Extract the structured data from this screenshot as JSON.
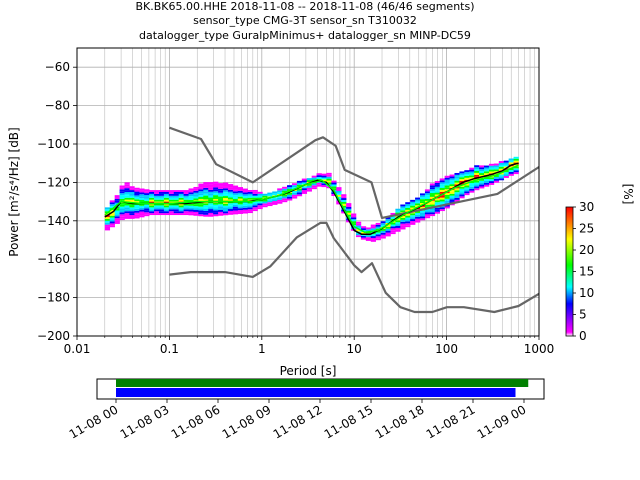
{
  "chart_data": {
    "type": "heatmap",
    "title_lines": [
      "BK.BK65.00.HHE   2018-11-08 -- 2018-11-08  (46/46 segments)",
      "sensor_type CMG-3T sensor_sn T310032",
      "datalogger_type GuralpMinimus+ datalogger_sn MINP-DC59"
    ],
    "xlabel": "Period [s]",
    "ylabel": "Power [m²/s⁴/Hz] [dB]",
    "xscale": "log",
    "xlim": [
      0.01,
      1000
    ],
    "ylim": [
      -200,
      -50
    ],
    "xticks": [
      0.01,
      0.1,
      1,
      10,
      100,
      1000
    ],
    "xtick_labels": [
      "0.01",
      "0.1",
      "1",
      "10",
      "100",
      "1000"
    ],
    "yticks": [
      -200,
      -180,
      -160,
      -140,
      -120,
      -100,
      -80,
      -60
    ],
    "ytick_labels": [
      "−200",
      "−180",
      "−160",
      "−140",
      "−120",
      "−100",
      "−80",
      "−60"
    ],
    "grid": true,
    "colorbar": {
      "label": "[%]",
      "range": [
        0,
        30
      ],
      "ticks": [
        0,
        5,
        10,
        15,
        20,
        25,
        30
      ],
      "tick_labels": [
        "0",
        "5",
        "10",
        "15",
        "20",
        "25",
        "30"
      ],
      "colormap": "pqlx",
      "colors": [
        "#ffffff",
        "#ff00ff",
        "#0000ff",
        "#00ffff",
        "#00ff00",
        "#ffff00",
        "#ff8000",
        "#ff0000"
      ]
    },
    "series": [
      {
        "role": "noise-model-high",
        "color": "#666666",
        "x": [
          0.1,
          0.22,
          0.32,
          0.8,
          3.8,
          4.6,
          6.3,
          7.9,
          15.4,
          20,
          354.8,
          1000
        ],
        "y": [
          -91.5,
          -97.4,
          -110.5,
          -120,
          -98,
          -96.5,
          -101,
          -113.5,
          -120,
          -138.5,
          -126,
          -112
        ]
      },
      {
        "role": "noise-model-low",
        "color": "#666666",
        "x": [
          0.1,
          0.17,
          0.4,
          0.8,
          1.24,
          2.4,
          4.3,
          5,
          6,
          10,
          12,
          15.6,
          21.9,
          31.6,
          45,
          70,
          101,
          154,
          328,
          600,
          1000
        ],
        "y": [
          -168,
          -166.7,
          -166.7,
          -169.2,
          -163.7,
          -148.6,
          -141.1,
          -141.1,
          -149,
          -163.2,
          -166.7,
          -162.1,
          -177.5,
          -185,
          -187.5,
          -187.5,
          -185,
          -185,
          -187.5,
          -184.4,
          -178
        ]
      },
      {
        "role": "mode",
        "color": "#000000",
        "x": [
          0.02,
          0.025,
          0.03,
          0.04,
          0.06,
          0.1,
          0.15,
          0.25,
          0.4,
          0.7,
          1,
          1.5,
          2,
          3,
          4,
          5,
          6,
          8,
          10,
          12,
          15,
          20,
          30,
          50,
          70,
          100,
          150,
          200,
          300,
          400,
          500,
          600
        ],
        "y": [
          -138,
          -135,
          -130,
          -131,
          -131,
          -131,
          -131,
          -130,
          -130,
          -130,
          -129,
          -127,
          -125,
          -121,
          -119,
          -120,
          -125,
          -136,
          -145,
          -147,
          -147,
          -144,
          -138,
          -133,
          -129,
          -125,
          -120,
          -118,
          -116,
          -114,
          -111,
          -110
        ]
      },
      {
        "role": "mean",
        "color": "#00ff00",
        "x": [
          0.02,
          0.03,
          0.05,
          0.1,
          0.2,
          0.4,
          0.8,
          1.5,
          3,
          4.5,
          6,
          8,
          10,
          13,
          18,
          25,
          40,
          70,
          120,
          200,
          350,
          600
        ],
        "y": [
          -137,
          -130,
          -131,
          -131,
          -130,
          -130,
          -130,
          -127,
          -121,
          -119,
          -124,
          -135,
          -143,
          -146,
          -145,
          -141,
          -135,
          -129,
          -123,
          -119,
          -116,
          -111
        ]
      }
    ],
    "spread": {
      "x": [
        0.02,
        0.025,
        0.03,
        0.04,
        0.06,
        0.1,
        0.15,
        0.25,
        0.4,
        0.7,
        1,
        1.5,
        2,
        3,
        4,
        5,
        6,
        8,
        10,
        12,
        15,
        20,
        30,
        50,
        70,
        100,
        150,
        200,
        300,
        400,
        500,
        600
      ],
      "upper": [
        -133,
        -128,
        -120,
        -123,
        -124,
        -124,
        -124,
        -120,
        -121,
        -124,
        -126,
        -124,
        -121,
        -118,
        -116,
        -116,
        -121,
        -130,
        -140,
        -144,
        -143,
        -140,
        -133,
        -127,
        -120,
        -117,
        -114,
        -112,
        -111,
        -109,
        -107,
        -106
      ],
      "lower": [
        -145,
        -142,
        -139,
        -139,
        -137,
        -137,
        -137,
        -138,
        -137,
        -136,
        -133,
        -131,
        -129,
        -125,
        -122,
        -123,
        -129,
        -140,
        -148,
        -150,
        -151,
        -149,
        -145,
        -140,
        -137,
        -133,
        -127,
        -124,
        -121,
        -118,
        -116,
        -115
      ]
    },
    "timeline": {
      "range": [
        "2018-11-08 00:00",
        "2018-11-09 00:00"
      ],
      "tick_labels": [
        "11-08 00",
        "11-08 03",
        "11-08 06",
        "11-08 09",
        "11-08 12",
        "11-08 15",
        "11-08 18",
        "11-08 21",
        "11-09 00"
      ],
      "data_bar": {
        "color": "#008000",
        "start_hours": 0,
        "end_hours": 24.25
      },
      "psd_bar": {
        "color": "#0000ff",
        "start_hours": 0,
        "end_hours": 23.5
      }
    }
  }
}
